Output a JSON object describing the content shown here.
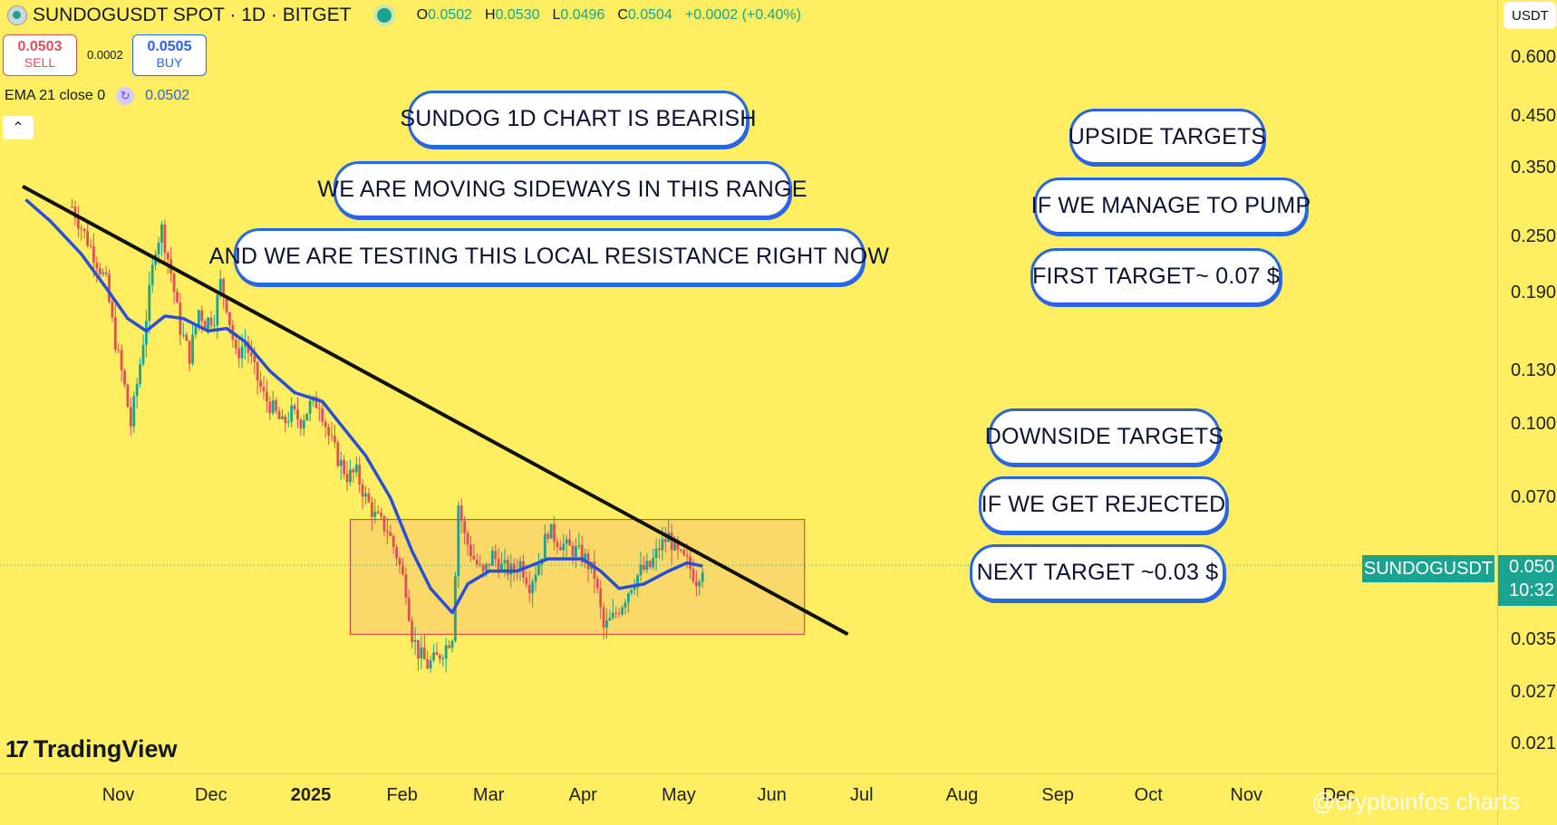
{
  "header": {
    "symbol": "SUNDOGUSDT SPOT · 1D · BITGET",
    "ohlc": [
      {
        "k": "O",
        "v": "0.0502"
      },
      {
        "k": "H",
        "v": "0.0530"
      },
      {
        "k": "L",
        "v": "0.0496"
      },
      {
        "k": "C",
        "v": "0.0504"
      }
    ],
    "change": "+0.0002 (+0.40%)"
  },
  "trade": {
    "sell_price": "0.0503",
    "sell_label": "SELL",
    "spread": "0.0002",
    "buy_price": "0.0505",
    "buy_label": "BUY"
  },
  "indicator": {
    "label": "EMA 21 close 0",
    "value": "0.0502"
  },
  "collapse_icon": "chevron-up-icon",
  "price_axis": {
    "currency": "USDT",
    "ticks": [
      "0.600",
      "0.450",
      "0.350",
      "0.250",
      "0.190",
      "0.130",
      "0.100",
      "0.070",
      "0.035",
      "0.027",
      "0.021"
    ],
    "current_price": "0.050",
    "countdown": "10:32",
    "symbol_tag": "SUNDOGUSDT"
  },
  "time_axis": [
    "Nov",
    "Dec",
    "2025",
    "Feb",
    "Mar",
    "Apr",
    "May",
    "Jun",
    "Jul",
    "Aug",
    "Sep",
    "Oct",
    "Nov",
    "Dec"
  ],
  "annotations": [
    "SUNDOG 1D CHART IS BEARISH",
    "WE ARE MOVING SIDEWAYS IN THIS RANGE",
    "AND WE ARE TESTING THIS LOCAL RESISTANCE RIGHT NOW",
    "UPSIDE TARGETS",
    "IF WE MANAGE TO PUMP",
    "FIRST TARGET~ 0.07 $",
    "DOWNSIDE TARGETS",
    "IF WE GET REJECTED",
    "NEXT TARGET ~0.03 $"
  ],
  "branding": {
    "tradingview": "TradingView",
    "watermark": "@cryptoinfos charts"
  },
  "colors": {
    "background": "#fdee62",
    "up": "#1ba392",
    "down": "#e1505a",
    "ema": "#2a4fd6",
    "trendline": "#111111",
    "range_fill": "#f8d66a",
    "range_border": "#d9333a"
  },
  "chart_data": {
    "type": "candlestick",
    "scale": "log",
    "ylim": [
      0.019,
      0.75
    ],
    "xlim": [
      "2024-10-01",
      "2025-12-31"
    ],
    "candles_close": [
      [
        "2024-10-17",
        0.29
      ],
      [
        "2024-10-20",
        0.262
      ],
      [
        "2024-10-24",
        0.23
      ],
      [
        "2024-10-28",
        0.2
      ],
      [
        "2024-10-31",
        0.15
      ],
      [
        "2024-11-03",
        0.12
      ],
      [
        "2024-11-05",
        0.1
      ],
      [
        "2024-11-08",
        0.135
      ],
      [
        "2024-11-11",
        0.19
      ],
      [
        "2024-11-13",
        0.24
      ],
      [
        "2024-11-15",
        0.26
      ],
      [
        "2024-11-18",
        0.21
      ],
      [
        "2024-11-21",
        0.16
      ],
      [
        "2024-11-24",
        0.14
      ],
      [
        "2024-11-27",
        0.175
      ],
      [
        "2024-11-29",
        0.165
      ],
      [
        "2024-12-02",
        0.17
      ],
      [
        "2024-12-04",
        0.2
      ],
      [
        "2024-12-06",
        0.18
      ],
      [
        "2024-12-09",
        0.14
      ],
      [
        "2024-12-12",
        0.15
      ],
      [
        "2024-12-15",
        0.13
      ],
      [
        "2024-12-18",
        0.115
      ],
      [
        "2024-12-21",
        0.108
      ],
      [
        "2024-12-24",
        0.1
      ],
      [
        "2024-12-27",
        0.106
      ],
      [
        "2024-12-30",
        0.102
      ],
      [
        "2025-01-02",
        0.11
      ],
      [
        "2025-01-05",
        0.112
      ],
      [
        "2025-01-08",
        0.095
      ],
      [
        "2025-01-11",
        0.085
      ],
      [
        "2025-01-14",
        0.078
      ],
      [
        "2025-01-17",
        0.079
      ],
      [
        "2025-01-20",
        0.07
      ],
      [
        "2025-01-23",
        0.064
      ],
      [
        "2025-01-27",
        0.06
      ],
      [
        "2025-01-30",
        0.053
      ],
      [
        "2025-02-02",
        0.045
      ],
      [
        "2025-02-04",
        0.036
      ],
      [
        "2025-02-06",
        0.033
      ],
      [
        "2025-02-09",
        0.031
      ],
      [
        "2025-02-12",
        0.032
      ],
      [
        "2025-02-15",
        0.034
      ],
      [
        "2025-02-17",
        0.036
      ],
      [
        "2025-02-19",
        0.068
      ],
      [
        "2025-02-21",
        0.058
      ],
      [
        "2025-02-24",
        0.052
      ],
      [
        "2025-02-27",
        0.048
      ],
      [
        "2025-03-02",
        0.053
      ],
      [
        "2025-03-05",
        0.05
      ],
      [
        "2025-03-08",
        0.049
      ],
      [
        "2025-03-11",
        0.051
      ],
      [
        "2025-03-14",
        0.046
      ],
      [
        "2025-03-17",
        0.051
      ],
      [
        "2025-03-20",
        0.06
      ],
      [
        "2025-03-23",
        0.057
      ],
      [
        "2025-03-26",
        0.055
      ],
      [
        "2025-03-29",
        0.054
      ],
      [
        "2025-04-01",
        0.052
      ],
      [
        "2025-04-04",
        0.048
      ],
      [
        "2025-04-07",
        0.037
      ],
      [
        "2025-04-10",
        0.039
      ],
      [
        "2025-04-13",
        0.042
      ],
      [
        "2025-04-16",
        0.046
      ],
      [
        "2025-04-19",
        0.049
      ],
      [
        "2025-04-22",
        0.05
      ],
      [
        "2025-04-25",
        0.055
      ],
      [
        "2025-04-28",
        0.058
      ],
      [
        "2025-05-01",
        0.053
      ],
      [
        "2025-05-04",
        0.051
      ],
      [
        "2025-05-07",
        0.047
      ],
      [
        "2025-05-09",
        0.0504
      ]
    ],
    "ema21": [
      [
        "2024-10-02",
        0.3
      ],
      [
        "2024-10-10",
        0.27
      ],
      [
        "2024-10-20",
        0.23
      ],
      [
        "2024-10-28",
        0.195
      ],
      [
        "2024-11-04",
        0.168
      ],
      [
        "2024-11-10",
        0.158
      ],
      [
        "2024-11-16",
        0.17
      ],
      [
        "2024-11-22",
        0.168
      ],
      [
        "2024-11-30",
        0.158
      ],
      [
        "2024-12-06",
        0.16
      ],
      [
        "2024-12-12",
        0.15
      ],
      [
        "2024-12-20",
        0.13
      ],
      [
        "2024-12-28",
        0.117
      ],
      [
        "2025-01-06",
        0.112
      ],
      [
        "2025-01-12",
        0.1
      ],
      [
        "2025-01-20",
        0.086
      ],
      [
        "2025-01-28",
        0.07
      ],
      [
        "2025-02-04",
        0.054
      ],
      [
        "2025-02-10",
        0.045
      ],
      [
        "2025-02-17",
        0.04
      ],
      [
        "2025-02-22",
        0.046
      ],
      [
        "2025-03-01",
        0.049
      ],
      [
        "2025-03-10",
        0.049
      ],
      [
        "2025-03-20",
        0.052
      ],
      [
        "2025-03-31",
        0.052
      ],
      [
        "2025-04-06",
        0.049
      ],
      [
        "2025-04-12",
        0.045
      ],
      [
        "2025-04-20",
        0.046
      ],
      [
        "2025-04-28",
        0.049
      ],
      [
        "2025-05-04",
        0.051
      ],
      [
        "2025-05-09",
        0.0502
      ]
    ],
    "trendline": [
      [
        "2024-10-01",
        0.32
      ],
      [
        "2025-06-25",
        0.036
      ]
    ],
    "range_box": {
      "from": "2025-01-15",
      "to": "2025-06-11",
      "low": 0.036,
      "high": 0.063
    }
  }
}
